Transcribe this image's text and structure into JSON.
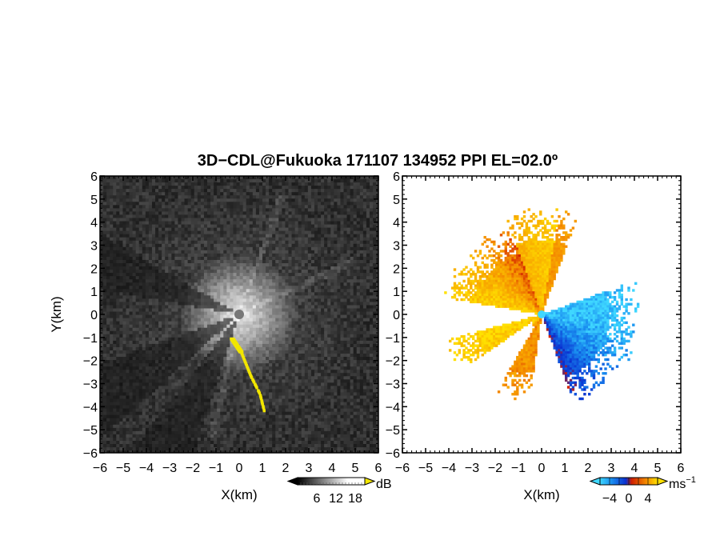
{
  "title": "3D−CDL@Fukuoka 171107 134952 PPI EL=02.0º",
  "chart_data": [
    {
      "type": "heatmap",
      "name": "snr-panel",
      "xlabel": "X(km)",
      "ylabel": "Y(km)",
      "xlim": [
        -6,
        6
      ],
      "ylim": [
        -6,
        6
      ],
      "ticks": [
        "−6",
        "−5",
        "−4",
        "−3",
        "−2",
        "−1",
        "0",
        "1",
        "2",
        "3",
        "4",
        "5",
        "6"
      ],
      "tick_values": [
        -6,
        -5,
        -4,
        -3,
        -2,
        -1,
        0,
        1,
        2,
        3,
        4,
        5,
        6
      ],
      "colorbar": {
        "unit": "dB",
        "labels": [
          "6",
          "12",
          "18"
        ],
        "label_values": [
          6,
          12,
          18
        ],
        "range": [
          0,
          21
        ]
      },
      "features": {
        "background": "noise",
        "bright_core_km": 2.6,
        "dark_sectors": [
          {
            "from_deg": 150,
            "to_deg": 170
          },
          {
            "from_deg": 200,
            "to_deg": 222
          },
          {
            "from_deg": 232,
            "to_deg": 252
          }
        ],
        "highlight_color": "#f2e600",
        "highlight_path_km": [
          [
            -0.3,
            -1.0
          ],
          [
            0.1,
            -1.6
          ],
          [
            0.5,
            -2.6
          ],
          [
            0.9,
            -3.4
          ],
          [
            1.1,
            -4.2
          ]
        ]
      }
    },
    {
      "type": "heatmap",
      "name": "velocity-panel",
      "xlabel": "X(km)",
      "xlim": [
        -6,
        6
      ],
      "ylim": [
        -6,
        6
      ],
      "ticks": [
        "−6",
        "−5",
        "−4",
        "−3",
        "−2",
        "−1",
        "0",
        "1",
        "2",
        "3",
        "4",
        "5",
        "6"
      ],
      "tick_values": [
        -6,
        -5,
        -4,
        -3,
        -2,
        -1,
        0,
        1,
        2,
        3,
        4,
        5,
        6
      ],
      "colorbar": {
        "unit": "ms",
        "unit_exponent": "−1",
        "labels": [
          "−4",
          "0",
          "4"
        ],
        "label_values": [
          -4,
          0,
          4
        ],
        "range": [
          -6,
          6
        ]
      },
      "features": {
        "empty_sectors": [
          {
            "from_deg": 20,
            "to_deg": 70
          },
          {
            "from_deg": 170,
            "to_deg": 195
          },
          {
            "from_deg": 255,
            "to_deg": 290
          }
        ],
        "positive_color": "#f4a000",
        "negative_color": "#1060e0"
      }
    }
  ]
}
